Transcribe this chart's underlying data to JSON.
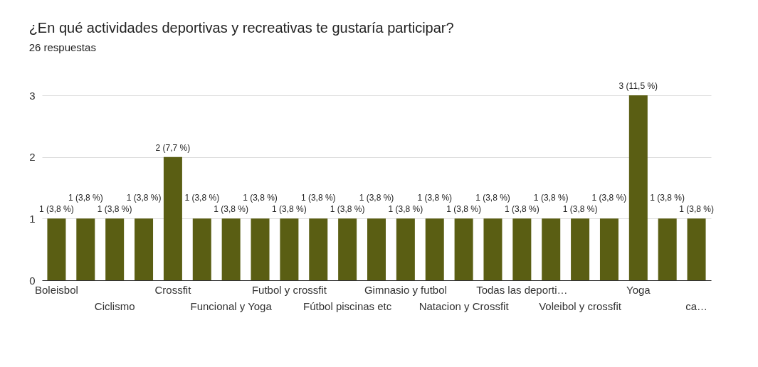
{
  "chart_data": {
    "type": "bar",
    "title": "¿En qué actividades deportivas y recreativas te gustaría participar?",
    "subtitle": "26 respuestas",
    "categories": [
      "Boleisbol",
      null,
      "Ciclismo",
      null,
      "Crossfit",
      null,
      "Funcional y Yoga",
      null,
      "Futbol y crossfit",
      null,
      "Fútbol piscinas etc",
      null,
      "Gimnasio y futbol",
      null,
      "Natacion y Crossfit",
      null,
      "Todas las deporti…",
      null,
      "Voleibol y crossfit",
      null,
      "Yoga",
      null,
      "ca…"
    ],
    "values": [
      1,
      1,
      1,
      1,
      2,
      1,
      1,
      1,
      1,
      1,
      1,
      1,
      1,
      1,
      1,
      1,
      1,
      1,
      1,
      1,
      3,
      1,
      1
    ],
    "value_labels": [
      "1 (3,8 %)",
      "1 (3,8 %)",
      "1 (3,8 %)",
      "1 (3,8 %)",
      "2 (7,7 %)",
      "1 (3,8 %)",
      "1 (3,8 %)",
      "1 (3,8 %)",
      "1 (3,8 %)",
      "1 (3,8 %)",
      "1 (3,8 %)",
      "1 (3,8 %)",
      "1 (3,8 %)",
      "1 (3,8 %)",
      "1 (3,8 %)",
      "1 (3,8 %)",
      "1 (3,8 %)",
      "1 (3,8 %)",
      "1 (3,8 %)",
      "1 (3,8 %)",
      "3 (11,5 %)",
      "1 (3,8 %)",
      "1 (3,8 %)"
    ],
    "color": "#5a5e13",
    "ylim": [
      0,
      3
    ],
    "yticks": [
      0,
      1,
      2,
      3
    ],
    "grid": "y"
  }
}
